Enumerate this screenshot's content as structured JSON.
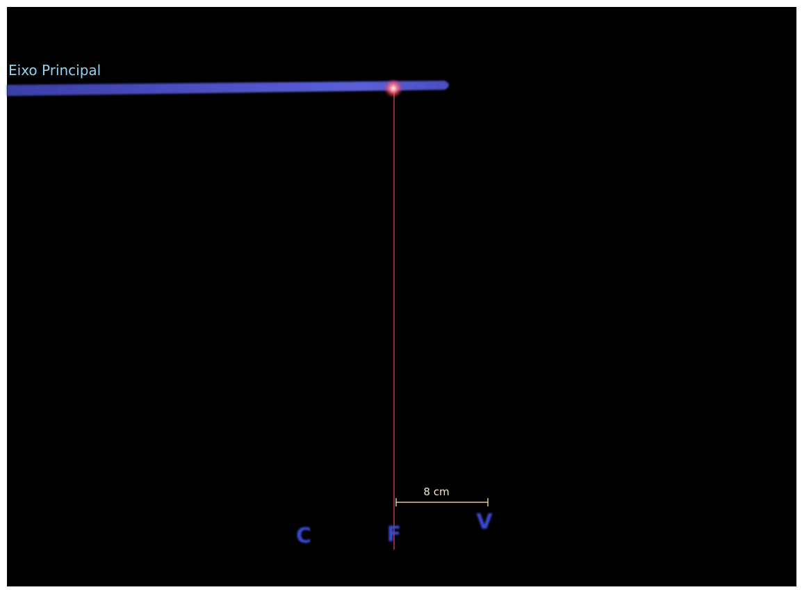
{
  "axis_label": "Eixo Principal",
  "distance_label": "8 cm",
  "points": [
    {
      "label": "C"
    },
    {
      "label": "F"
    },
    {
      "label": "V"
    }
  ]
}
